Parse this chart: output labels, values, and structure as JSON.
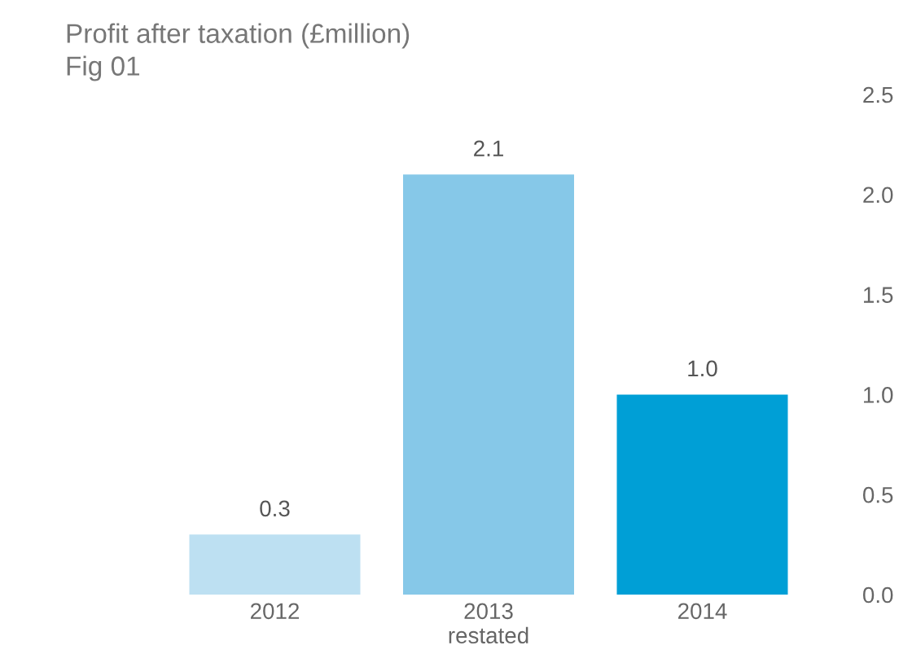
{
  "chart_data": {
    "type": "bar",
    "title": "Profit after taxation (£million)",
    "subtitle": "Fig 01",
    "categories": [
      "2012",
      "2013\nrestated",
      "2014"
    ],
    "values": [
      0.3,
      2.1,
      1.0
    ],
    "colors": [
      "#bde0f2",
      "#86c8e8",
      "#009fd6"
    ],
    "value_labels": [
      "0.3",
      "2.1",
      "1.0"
    ],
    "ylim": [
      0,
      2.5
    ],
    "yticks": [
      {
        "value": 0,
        "label": "0.0"
      },
      {
        "value": 0.5,
        "label": "0.5"
      },
      {
        "value": 1,
        "label": "1.0"
      },
      {
        "value": 1.5,
        "label": "1.5"
      },
      {
        "value": 2,
        "label": "2.0"
      },
      {
        "value": 2.5,
        "label": "2.5"
      }
    ],
    "grid": false,
    "legend": false
  }
}
